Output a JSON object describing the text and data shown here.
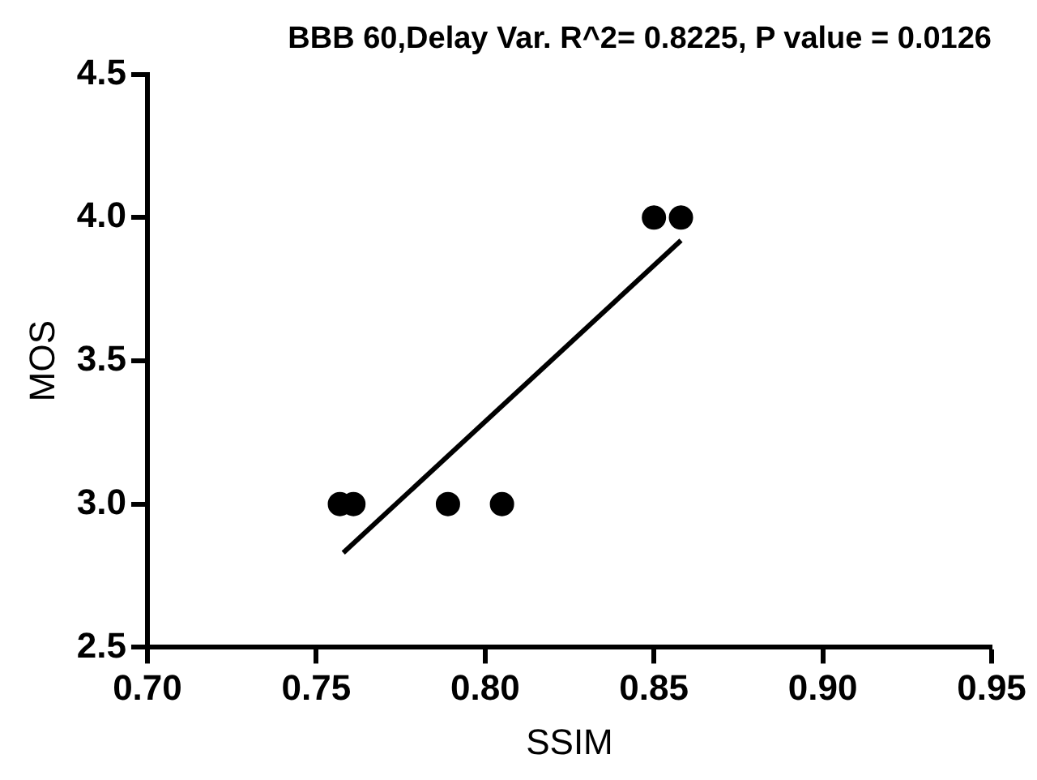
{
  "chart_data": {
    "type": "scatter",
    "title": "BBB 60,Delay Var. R^2= 0.8225, P value = 0.0126",
    "xlabel": "SSIM",
    "ylabel": "MOS",
    "series": [
      {
        "marker": "circle",
        "color": "#000000",
        "x": [
          0.757,
          0.761,
          0.789,
          0.805,
          0.85,
          0.858
        ],
        "values": [
          3.0,
          3.0,
          3.0,
          3.0,
          4.0,
          4.0
        ]
      },
      {
        "type": "line",
        "marker": "none",
        "color": "#000000",
        "x": [
          0.758,
          0.858
        ],
        "values": [
          2.83,
          3.92
        ]
      }
    ],
    "xlim": [
      0.7,
      0.95
    ],
    "xticks": [
      {
        "value": 0.7,
        "label": "0.70"
      },
      {
        "value": 0.75,
        "label": "0.75"
      },
      {
        "value": 0.8,
        "label": "0.80"
      },
      {
        "value": 0.85,
        "label": "0.85"
      },
      {
        "value": 0.9,
        "label": "0.90"
      },
      {
        "value": 0.95,
        "label": "0.95"
      }
    ],
    "ylim": [
      2.5,
      4.5
    ],
    "yticks": [
      {
        "value": 2.5,
        "label": "2.5"
      },
      {
        "value": 3.0,
        "label": "3.0"
      },
      {
        "value": 3.5,
        "label": "3.5"
      },
      {
        "value": 4.0,
        "label": "4.0"
      },
      {
        "value": 4.5,
        "label": "4.5"
      }
    ],
    "grid": false,
    "legend": false
  }
}
